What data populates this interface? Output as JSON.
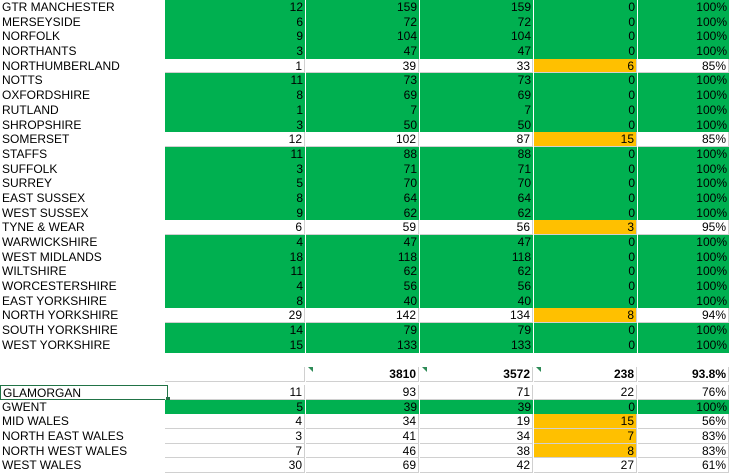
{
  "rows": [
    {
      "name": "GTR MANCHESTER",
      "n": "12",
      "a": "159",
      "b": "159",
      "d": "0",
      "p": "100%",
      "status": "green"
    },
    {
      "name": "MERSEYSIDE",
      "n": "6",
      "a": "72",
      "b": "72",
      "d": "0",
      "p": "100%",
      "status": "green"
    },
    {
      "name": "NORFOLK",
      "n": "9",
      "a": "104",
      "b": "104",
      "d": "0",
      "p": "100%",
      "status": "green"
    },
    {
      "name": "NORTHANTS",
      "n": "3",
      "a": "47",
      "b": "47",
      "d": "0",
      "p": "100%",
      "status": "green"
    },
    {
      "name": "NORTHUMBERLAND",
      "n": "1",
      "a": "39",
      "b": "33",
      "d": "6",
      "p": "85%",
      "status": "amber"
    },
    {
      "name": "NOTTS",
      "n": "11",
      "a": "73",
      "b": "73",
      "d": "0",
      "p": "100%",
      "status": "green"
    },
    {
      "name": "OXFORDSHIRE",
      "n": "8",
      "a": "69",
      "b": "69",
      "d": "0",
      "p": "100%",
      "status": "green"
    },
    {
      "name": "RUTLAND",
      "n": "1",
      "a": "7",
      "b": "7",
      "d": "0",
      "p": "100%",
      "status": "green"
    },
    {
      "name": "SHROPSHIRE",
      "n": "3",
      "a": "50",
      "b": "50",
      "d": "0",
      "p": "100%",
      "status": "green"
    },
    {
      "name": "SOMERSET",
      "n": "12",
      "a": "102",
      "b": "87",
      "d": "15",
      "p": "85%",
      "status": "amber"
    },
    {
      "name": "STAFFS",
      "n": "11",
      "a": "88",
      "b": "88",
      "d": "0",
      "p": "100%",
      "status": "green"
    },
    {
      "name": "SUFFOLK",
      "n": "3",
      "a": "71",
      "b": "71",
      "d": "0",
      "p": "100%",
      "status": "green"
    },
    {
      "name": "SURREY",
      "n": "5",
      "a": "70",
      "b": "70",
      "d": "0",
      "p": "100%",
      "status": "green"
    },
    {
      "name": "EAST SUSSEX",
      "n": "8",
      "a": "64",
      "b": "64",
      "d": "0",
      "p": "100%",
      "status": "green"
    },
    {
      "name": "WEST SUSSEX",
      "n": "9",
      "a": "62",
      "b": "62",
      "d": "0",
      "p": "100%",
      "status": "green"
    },
    {
      "name": "TYNE & WEAR",
      "n": "6",
      "a": "59",
      "b": "56",
      "d": "3",
      "p": "95%",
      "status": "amber"
    },
    {
      "name": "WARWICKSHIRE",
      "n": "4",
      "a": "47",
      "b": "47",
      "d": "0",
      "p": "100%",
      "status": "green"
    },
    {
      "name": "WEST MIDLANDS",
      "n": "18",
      "a": "118",
      "b": "118",
      "d": "0",
      "p": "100%",
      "status": "green"
    },
    {
      "name": "WILTSHIRE",
      "n": "11",
      "a": "62",
      "b": "62",
      "d": "0",
      "p": "100%",
      "status": "green"
    },
    {
      "name": "WORCESTERSHIRE",
      "n": "4",
      "a": "56",
      "b": "56",
      "d": "0",
      "p": "100%",
      "status": "green"
    },
    {
      "name": "EAST YORKSHIRE",
      "n": "8",
      "a": "40",
      "b": "40",
      "d": "0",
      "p": "100%",
      "status": "green"
    },
    {
      "name": "NORTH YORKSHIRE",
      "n": "29",
      "a": "142",
      "b": "134",
      "d": "8",
      "p": "94%",
      "status": "amber"
    },
    {
      "name": "SOUTH YORKSHIRE",
      "n": "14",
      "a": "79",
      "b": "79",
      "d": "0",
      "p": "100%",
      "status": "green"
    },
    {
      "name": "WEST YORKSHIRE",
      "n": "15",
      "a": "133",
      "b": "133",
      "d": "0",
      "p": "100%",
      "status": "green"
    }
  ],
  "totals": {
    "a": "3810",
    "b": "3572",
    "d": "238",
    "p": "93.8%"
  },
  "wales": [
    {
      "name": "GLAMORGAN",
      "n": "11",
      "a": "93",
      "b": "71",
      "d": "22",
      "p": "76%",
      "status": "plain"
    },
    {
      "name": "GWENT",
      "n": "5",
      "a": "39",
      "b": "39",
      "d": "0",
      "p": "100%",
      "status": "green"
    },
    {
      "name": "MID WALES",
      "n": "4",
      "a": "34",
      "b": "19",
      "d": "15",
      "p": "56%",
      "status": "amber"
    },
    {
      "name": "NORTH EAST WALES",
      "n": "3",
      "a": "41",
      "b": "34",
      "d": "7",
      "p": "83%",
      "status": "amber"
    },
    {
      "name": "NORTH WEST WALES",
      "n": "7",
      "a": "46",
      "b": "38",
      "d": "8",
      "p": "83%",
      "status": "amber"
    },
    {
      "name": "WEST WALES",
      "n": "30",
      "a": "69",
      "b": "42",
      "d": "27",
      "p": "61%",
      "status": "plain"
    }
  ],
  "colors": {
    "green": "#00b050",
    "amber": "#ffc000"
  }
}
